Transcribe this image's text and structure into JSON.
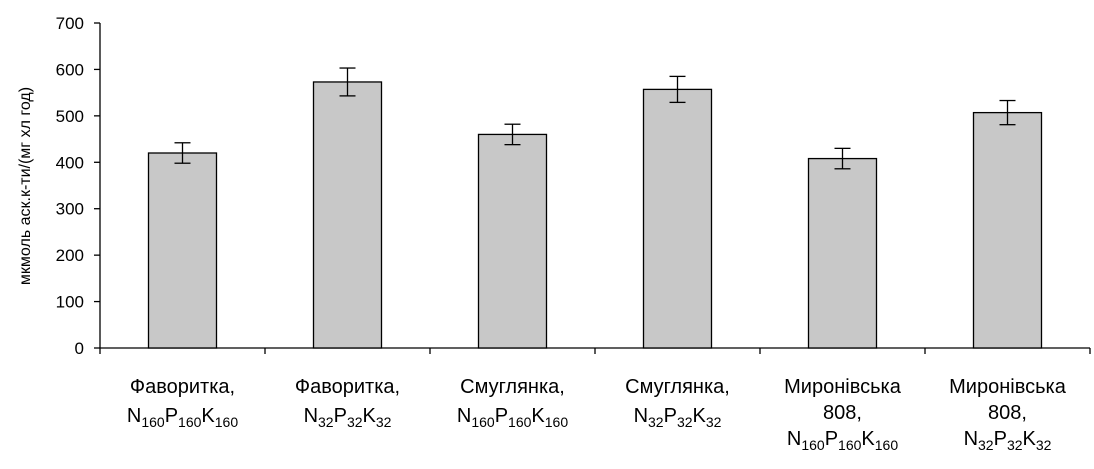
{
  "chart_data": {
    "type": "bar",
    "title": "",
    "xlabel": "",
    "ylabel": "мкмоль аск.к-ти/(мг хл год)",
    "ylim": [
      0,
      700
    ],
    "yticks": [
      0,
      100,
      200,
      300,
      400,
      500,
      600,
      700
    ],
    "grid": false,
    "bar_color": "#c8c8c8",
    "categories": [
      "Фаворитка, N160P160K160",
      "Фаворитка, N32P32K32",
      "Смуглянка, N160P160K160",
      "Смуглянка, N32P32K32",
      "Миронівська 808, N160P160K160",
      "Миронівська 808, N32P32K32"
    ],
    "category_labels": [
      {
        "lines": [
          [
            {
              "t": "Фаворитка,"
            }
          ],
          [
            {
              "t": "N"
            },
            {
              "t": "160",
              "sub": true
            },
            {
              "t": "P"
            },
            {
              "t": "160",
              "sub": true
            },
            {
              "t": "K"
            },
            {
              "t": "160",
              "sub": true
            }
          ]
        ]
      },
      {
        "lines": [
          [
            {
              "t": "Фаворитка,"
            }
          ],
          [
            {
              "t": "N"
            },
            {
              "t": "32",
              "sub": true
            },
            {
              "t": "P"
            },
            {
              "t": "32",
              "sub": true
            },
            {
              "t": "K"
            },
            {
              "t": "32",
              "sub": true
            }
          ]
        ]
      },
      {
        "lines": [
          [
            {
              "t": "Смуглянка,"
            }
          ],
          [
            {
              "t": "N"
            },
            {
              "t": "160",
              "sub": true
            },
            {
              "t": "P"
            },
            {
              "t": "160",
              "sub": true
            },
            {
              "t": "K"
            },
            {
              "t": "160",
              "sub": true
            }
          ]
        ]
      },
      {
        "lines": [
          [
            {
              "t": "Смуглянка,"
            }
          ],
          [
            {
              "t": "N"
            },
            {
              "t": "32",
              "sub": true
            },
            {
              "t": "P"
            },
            {
              "t": "32",
              "sub": true
            },
            {
              "t": "K"
            },
            {
              "t": "32",
              "sub": true
            }
          ]
        ]
      },
      {
        "lines": [
          [
            {
              "t": "Миронівська"
            }
          ],
          [
            {
              "t": "808,"
            }
          ],
          [
            {
              "t": "N"
            },
            {
              "t": "160",
              "sub": true
            },
            {
              "t": "P"
            },
            {
              "t": "160",
              "sub": true
            },
            {
              "t": "K"
            },
            {
              "t": "160",
              "sub": true
            }
          ]
        ]
      },
      {
        "lines": [
          [
            {
              "t": "Миронівська"
            }
          ],
          [
            {
              "t": "808,"
            }
          ],
          [
            {
              "t": "N"
            },
            {
              "t": "32",
              "sub": true
            },
            {
              "t": "P"
            },
            {
              "t": "32",
              "sub": true
            },
            {
              "t": "K"
            },
            {
              "t": "32",
              "sub": true
            }
          ]
        ]
      }
    ],
    "values": [
      420,
      573,
      460,
      557,
      408,
      507
    ],
    "errors": [
      22,
      30,
      22,
      28,
      22,
      26
    ]
  }
}
